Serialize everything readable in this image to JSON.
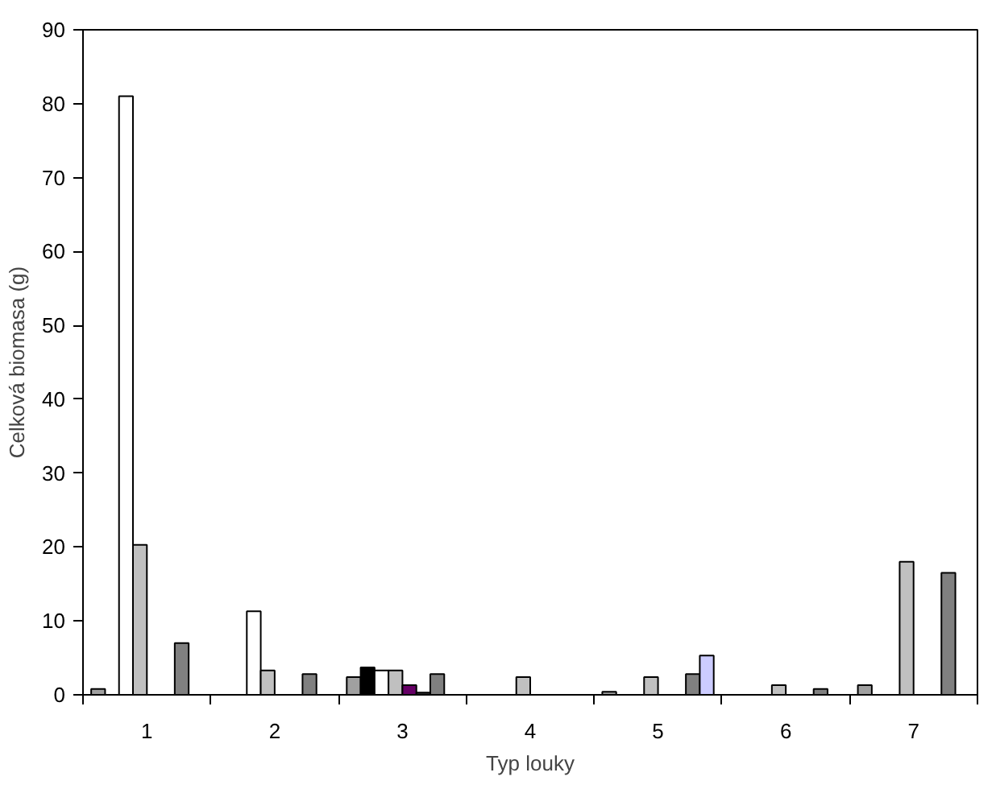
{
  "chart_data": {
    "type": "bar",
    "xlabel": "Typ louky",
    "ylabel": "Celková biomasa (g)",
    "categories": [
      "1",
      "2",
      "3",
      "4",
      "5",
      "6",
      "7"
    ],
    "ylim": [
      0,
      90
    ],
    "yticks": [
      0,
      10,
      20,
      30,
      40,
      50,
      60,
      70,
      80,
      90
    ],
    "grid": false,
    "series": [
      {
        "color": "#a0a0a0",
        "values": [
          0.8,
          null,
          2.4,
          null,
          0.4,
          null,
          1.3
        ]
      },
      {
        "color": "#000000",
        "values": [
          null,
          null,
          3.7,
          null,
          null,
          null,
          null
        ]
      },
      {
        "color": "#ffffff",
        "values": [
          81,
          11.3,
          3.3,
          null,
          null,
          null,
          null
        ]
      },
      {
        "color": "#c0c0c0",
        "values": [
          20.3,
          3.3,
          3.3,
          2.4,
          2.4,
          1.3,
          18
        ]
      },
      {
        "color": "#660066",
        "values": [
          null,
          null,
          1.3,
          null,
          null,
          null,
          null
        ]
      },
      {
        "color": "#333333",
        "values": [
          null,
          null,
          0.3,
          null,
          null,
          null,
          null
        ]
      },
      {
        "color": "#808080",
        "values": [
          7,
          2.8,
          2.8,
          null,
          2.8,
          0.8,
          16.5
        ]
      },
      {
        "color": "#ccccff",
        "values": [
          null,
          null,
          null,
          null,
          5.3,
          null,
          null
        ]
      }
    ]
  }
}
